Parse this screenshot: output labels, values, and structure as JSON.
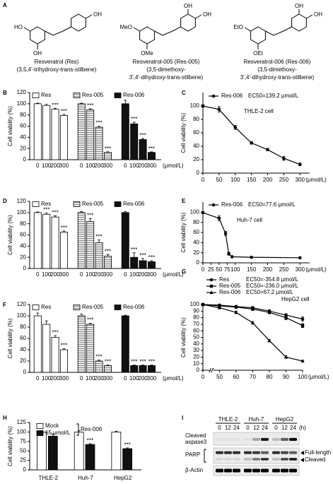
{
  "letters": [
    "A",
    "B",
    "C",
    "D",
    "E",
    "F",
    "G",
    "H",
    "I"
  ],
  "structures": [
    {
      "atoms": [
        "HO",
        "OH",
        "OH"
      ],
      "lines": [
        "Resveratrol (Res)",
        "(3,5,4'-trihydroxy-trans-stilbene)"
      ]
    },
    {
      "atoms": [
        "MeO",
        "OH",
        "OH",
        "OMe"
      ],
      "lines": [
        "Resveratrol-005 (Res-005)",
        "(3,5-dimethoxy-",
        "3',4'-dihydroxy-trans-stilbene)"
      ]
    },
    {
      "atoms": [
        "EtO",
        "OH",
        "OH",
        "OEt"
      ],
      "lines": [
        "Resveratrol-006 (Res-006)",
        "(3,5-dimethoxy-",
        "3',4'-dihydroxy-trans-stilbene)"
      ]
    }
  ],
  "chart_data": [
    {
      "type": "bar",
      "layout": "series-groups",
      "ylabel": "Cell viability (%)",
      "xlabel": "(μmol/L)",
      "categories": [
        "0",
        "100",
        "200",
        "300"
      ],
      "ylim": [
        0,
        120
      ],
      "yticks": [
        0,
        20,
        40,
        60,
        80,
        100,
        120
      ],
      "series": [
        {
          "name": "Res",
          "color": "#ffffff",
          "values": [
            100,
            97,
            90,
            79
          ],
          "errors": [
            1,
            2,
            2,
            2
          ],
          "significance": [
            null,
            null,
            "***",
            "***"
          ]
        },
        {
          "name": "Res-005",
          "color": "#8a8a8a",
          "pattern": "hatch",
          "values": [
            100,
            89,
            58,
            13
          ],
          "errors": [
            1,
            2,
            2,
            1
          ],
          "significance": [
            null,
            "***",
            "***",
            "***"
          ]
        },
        {
          "name": "Res-006",
          "color": "#111111",
          "values": [
            100,
            64,
            36,
            13
          ],
          "errors": [
            6,
            3,
            2,
            1
          ],
          "significance": [
            null,
            "***",
            "***",
            "***"
          ]
        }
      ]
    },
    {
      "type": "line",
      "ylabel": "Cell viability (%)",
      "xlabel": "(μmol/L)",
      "note": "THLE-2 cell",
      "xlim": [
        0,
        330
      ],
      "xticks": [
        0,
        50,
        100,
        150,
        200,
        250,
        300
      ],
      "ylim": [
        0,
        120
      ],
      "yticks": [
        0,
        20,
        40,
        60,
        80,
        100
      ],
      "series": [
        {
          "name": "Res-006",
          "ec50": "EC50=139.2 μmol/L",
          "marker": "circle",
          "color": "#000000",
          "x": [
            0,
            50,
            100,
            150,
            200,
            250,
            300
          ],
          "values": [
            100,
            95,
            68,
            45,
            35,
            22,
            13
          ],
          "errors": [
            2,
            4,
            3,
            2,
            2,
            3,
            2
          ]
        }
      ]
    },
    {
      "type": "bar",
      "layout": "series-groups",
      "ylabel": "Cell viability (%)",
      "xlabel": "(μmol/L)",
      "categories": [
        "0",
        "100",
        "200",
        "300"
      ],
      "ylim": [
        0,
        120
      ],
      "yticks": [
        0,
        20,
        40,
        60,
        80,
        100,
        120
      ],
      "series": [
        {
          "name": "Res",
          "color": "#ffffff",
          "values": [
            100,
            97,
            92,
            65
          ],
          "errors": [
            1,
            2,
            2,
            2
          ],
          "significance": [
            null,
            "***",
            "***",
            "***"
          ]
        },
        {
          "name": "Res-005",
          "color": "#8a8a8a",
          "pattern": "hatch",
          "values": [
            100,
            84,
            46,
            22
          ],
          "errors": [
            2,
            5,
            5,
            3
          ],
          "significance": [
            null,
            "***",
            "***",
            "***"
          ]
        },
        {
          "name": "Res-006",
          "color": "#111111",
          "values": [
            100,
            20,
            14,
            12
          ],
          "errors": [
            2,
            8,
            4,
            2
          ],
          "significance": [
            null,
            "***",
            "***",
            "***"
          ]
        }
      ]
    },
    {
      "type": "line",
      "ylabel": "Cell viability (%)",
      "xlabel": "(μmol/L)",
      "note": "Huh-7 cell",
      "xlim": [
        0,
        330
      ],
      "xticks": [
        0,
        25,
        50,
        75,
        100,
        150,
        200,
        250,
        300
      ],
      "ylim": [
        0,
        120
      ],
      "yticks": [
        0,
        20,
        40,
        60,
        80,
        100
      ],
      "series": [
        {
          "name": "Res-006",
          "ec50": "EC50=77.6 μmol/L",
          "marker": "circle",
          "color": "#000000",
          "x": [
            0,
            50,
            70,
            80,
            90,
            150,
            300
          ],
          "values": [
            99,
            88,
            58,
            18,
            12,
            11,
            10
          ],
          "errors": [
            2,
            5,
            4,
            3,
            2,
            1,
            1
          ]
        }
      ]
    },
    {
      "type": "bar",
      "layout": "series-groups",
      "ylabel": "Cell viability (%)",
      "xlabel": "(μmol/L)",
      "categories": [
        "0",
        "100",
        "200",
        "300"
      ],
      "ylim": [
        0,
        120
      ],
      "yticks": [
        0,
        20,
        40,
        60,
        80,
        100,
        120
      ],
      "series": [
        {
          "name": "Res",
          "color": "#ffffff",
          "values": [
            100,
            85,
            62,
            40
          ],
          "errors": [
            5,
            6,
            3,
            2
          ],
          "significance": [
            null,
            null,
            "***",
            "***"
          ]
        },
        {
          "name": "Res-005",
          "color": "#8a8a8a",
          "pattern": "hatch",
          "values": [
            100,
            85,
            20,
            12
          ],
          "errors": [
            3,
            2,
            2,
            1
          ],
          "significance": [
            null,
            "***",
            "***",
            "***"
          ]
        },
        {
          "name": "Res-006",
          "color": "#111111",
          "values": [
            100,
            12,
            12,
            12
          ],
          "errors": [
            1,
            1,
            1,
            1
          ],
          "significance": [
            null,
            "***",
            "***",
            "***"
          ]
        }
      ]
    },
    {
      "type": "line",
      "ylabel": "Cell viability (%)",
      "xlabel": "(μmol/L)",
      "note": "HepG2 cell",
      "xlim": [
        0,
        100
      ],
      "xbreak": [
        5,
        45
      ],
      "xticks": [
        0,
        50,
        60,
        70,
        80,
        90,
        100
      ],
      "ylim": [
        0,
        100
      ],
      "yticks": [
        0,
        10,
        20,
        30,
        40,
        50,
        60,
        70,
        80,
        90,
        100
      ],
      "series": [
        {
          "name": "Res",
          "ec50": "EC50=-354.8 μmol/L",
          "marker": "circle",
          "color": "#000000",
          "x": [
            0,
            50,
            60,
            70,
            80,
            90,
            100
          ],
          "values": [
            100,
            99,
            97,
            95,
            90,
            84,
            78
          ],
          "errors": [
            1,
            1,
            1,
            2,
            2,
            2,
            3
          ]
        },
        {
          "name": "Res-005",
          "ec50": "EC50=-236.0 μmol/L",
          "marker": "square",
          "color": "#000000",
          "x": [
            0,
            50,
            60,
            70,
            80,
            90,
            100
          ],
          "values": [
            100,
            98,
            96,
            93,
            88,
            80,
            68
          ],
          "errors": [
            1,
            1,
            1,
            2,
            2,
            3,
            3
          ]
        },
        {
          "name": "Res-006",
          "ec50": "EC50=67.2 μmol/L",
          "marker": "triangle",
          "color": "#000000",
          "x": [
            0,
            50,
            60,
            70,
            80,
            90,
            100
          ],
          "values": [
            100,
            95,
            88,
            72,
            45,
            20,
            14
          ],
          "errors": [
            1,
            1,
            2,
            2,
            2,
            2,
            1
          ]
        }
      ]
    },
    {
      "type": "bar",
      "layout": "category-groups",
      "ylabel": "Cell viability (%)",
      "categories": [
        "THLE-2",
        "Huh-7",
        "HepG2"
      ],
      "ylim": [
        0,
        125
      ],
      "yticks": [
        0,
        25,
        50,
        75,
        100,
        125
      ],
      "group_label": "Res-006",
      "series": [
        {
          "name": "Mock",
          "color": "#ffffff",
          "values": [
            100,
            100,
            100
          ],
          "errors": [
            4,
            4,
            2
          ]
        },
        {
          "name": "65 μmol/L",
          "color": "#111111",
          "values": [
            89,
            67,
            56
          ],
          "errors": [
            6,
            2,
            2
          ],
          "significance": [
            null,
            "***",
            "***"
          ]
        }
      ]
    }
  ],
  "blot": {
    "cell_lines": [
      "THLE-2",
      "Huh-7",
      "HepG2"
    ],
    "times": [
      "0",
      "12",
      "24"
    ],
    "unit": "(h)",
    "rows": [
      [
        "Cleaved",
        "aspase3"
      ],
      [
        "PARP"
      ],
      [
        "β-Actin"
      ]
    ],
    "parp_bands": [
      "Full-length",
      "Cleaved"
    ]
  }
}
